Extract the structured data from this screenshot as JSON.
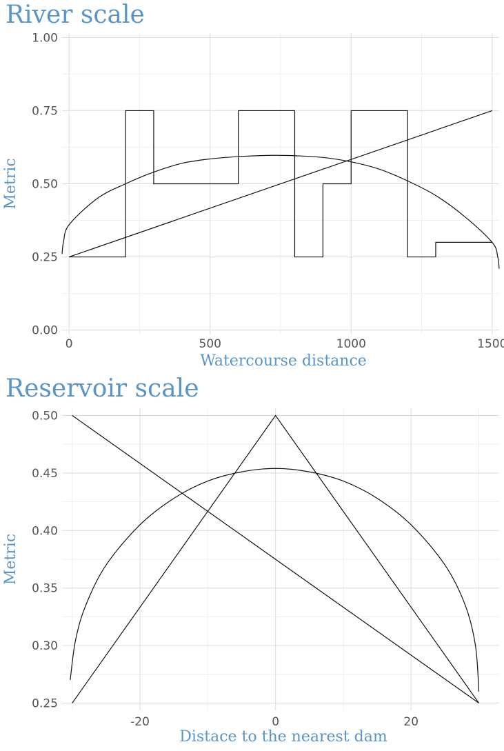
{
  "theme": {
    "accent": "#5b95c6",
    "series_color": "#111111"
  },
  "chart_data": [
    {
      "type": "line",
      "title": "River scale",
      "xlabel": "Watercourse distance",
      "ylabel": "Metric",
      "xlim": [
        -25,
        1525
      ],
      "ylim": [
        -0.015,
        1.015
      ],
      "xticks": [
        0,
        500,
        1000,
        1500
      ],
      "xtick_labels": [
        "0",
        "500",
        "1000",
        "1500"
      ],
      "yticks": [
        0,
        0.25,
        0.5,
        0.75,
        1
      ],
      "ytick_labels": [
        "0.00",
        "0.25",
        "0.50",
        "0.75",
        "1.00"
      ],
      "xminor": [
        250,
        750,
        1250
      ],
      "yminor": [
        0.125,
        0.375,
        0.625,
        0.875
      ],
      "grid": true,
      "series": [
        {
          "kind": "step",
          "x": [
            0,
            200,
            300,
            600,
            800,
            900,
            1000,
            1200,
            1300,
            1500
          ],
          "y": [
            0.25,
            0.75,
            0.5,
            0.75,
            0.25,
            0.5,
            0.75,
            0.25,
            0.3,
            0.3
          ]
        },
        {
          "kind": "line",
          "x": [
            0,
            1500
          ],
          "y": [
            0.25,
            0.75
          ]
        },
        {
          "kind": "curve",
          "x": [
            -25,
            -20,
            0,
            100,
            200,
            300,
            400,
            500,
            600,
            700,
            750,
            800,
            900,
            1000,
            1100,
            1200,
            1300,
            1400,
            1500,
            1520,
            1525
          ],
          "y": [
            0.26,
            0.3,
            0.36,
            0.45,
            0.5,
            0.54,
            0.57,
            0.585,
            0.593,
            0.597,
            0.597,
            0.596,
            0.59,
            0.575,
            0.55,
            0.51,
            0.46,
            0.39,
            0.3,
            0.25,
            0.21
          ]
        }
      ]
    },
    {
      "type": "line",
      "title": "Reservoir scale",
      "xlabel": "Distace to the nearest dam",
      "ylabel": "Metric",
      "xlim": [
        -31.5,
        33
      ],
      "ylim": [
        0.2437,
        0.5063
      ],
      "xticks": [
        -20,
        0,
        20
      ],
      "xtick_labels": [
        "-20",
        "0",
        "20"
      ],
      "yticks": [
        0.25,
        0.3,
        0.35,
        0.4,
        0.45,
        0.5
      ],
      "ytick_labels": [
        "0.25",
        "0.30",
        "0.35",
        "0.40",
        "0.45",
        "0.50"
      ],
      "xminor": [
        -30,
        -10,
        10,
        30
      ],
      "yminor": [
        0.275,
        0.325,
        0.375,
        0.425,
        0.475
      ],
      "grid": true,
      "series": [
        {
          "kind": "line",
          "x": [
            -30,
            30
          ],
          "y": [
            0.5,
            0.25
          ]
        },
        {
          "kind": "line",
          "x": [
            -30,
            0,
            30
          ],
          "y": [
            0.25,
            0.5,
            0.25
          ]
        },
        {
          "kind": "curve",
          "x": [
            -30.3,
            -29.5,
            -28,
            -25,
            -20,
            -15,
            -10,
            -5,
            0,
            5,
            10,
            15,
            20,
            25,
            28,
            29.5,
            30
          ],
          "y": [
            0.27,
            0.305,
            0.335,
            0.37,
            0.405,
            0.428,
            0.443,
            0.451,
            0.454,
            0.451,
            0.443,
            0.428,
            0.405,
            0.37,
            0.335,
            0.3,
            0.26
          ]
        }
      ]
    }
  ]
}
